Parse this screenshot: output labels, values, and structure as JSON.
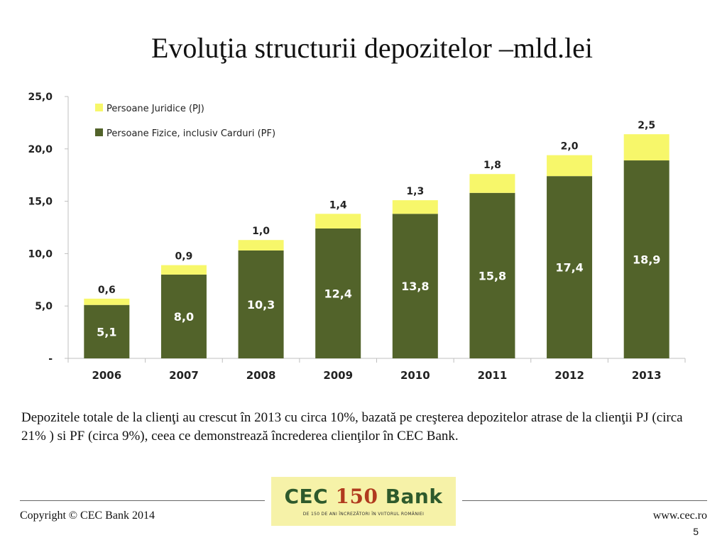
{
  "slide": {
    "title": "Evoluţia structurii depozitelor –mld.lei",
    "description": "Depozitele totale de la clienţi au crescut în 2013 cu circa 10%, bazată pe creşterea depozitelor atrase de la clienţii PJ (circa 21% ) si PF (circa 9%), ceea ce demonstrează încrederea clienţilor în CEC Bank.",
    "copyright": "Copyright © CEC Bank 2014",
    "website": "www.cec.ro",
    "page_number": "5"
  },
  "logo": {
    "text_left": "CEC",
    "text_mid": "150",
    "text_right": "Bank",
    "subtitle": "DE 150 DE ANI ÎNCREZĂTORI ÎN VIITORUL ROMÂNIEI"
  },
  "colors": {
    "pf": "#52632a",
    "pj": "#f7f76a",
    "logo_green": "#2e5a2c",
    "logo_red": "#b03a1e"
  },
  "chart_data": {
    "type": "bar",
    "stacked": true,
    "categories": [
      "2006",
      "2007",
      "2008",
      "2009",
      "2010",
      "2011",
      "2012",
      "2013"
    ],
    "series": [
      {
        "name": "Persoane Fizice, inclusiv Carduri (PF)",
        "values": [
          5.1,
          8.0,
          10.3,
          12.4,
          13.8,
          15.8,
          17.4,
          18.9
        ],
        "labels": [
          "5,1",
          "8,0",
          "10,3",
          "12,4",
          "13,8",
          "15,8",
          "17,4",
          "18,9"
        ]
      },
      {
        "name": "Persoane Juridice (PJ)",
        "values": [
          0.6,
          0.9,
          1.0,
          1.4,
          1.3,
          1.8,
          2.0,
          2.5
        ],
        "labels": [
          "0,6",
          "0,9",
          "1,0",
          "1,4",
          "1,3",
          "1,8",
          "2,0",
          "2,5"
        ]
      }
    ],
    "ylim": [
      0,
      25
    ],
    "yticks": [
      0,
      5,
      10,
      15,
      20,
      25
    ],
    "ytick_labels": [
      "-",
      "5,0",
      "10,0",
      "15,0",
      "20,0",
      "25,0"
    ],
    "legend_position": "top-left",
    "grid": false
  }
}
